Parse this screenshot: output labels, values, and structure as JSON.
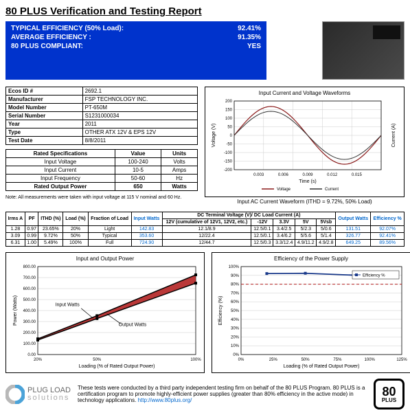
{
  "title": "80 PLUS Verification and Testing Report",
  "bluebox": {
    "r1l": "TYPICAL EFFICIENCY (50% Load):",
    "r1v": "92.41%",
    "r2l": "AVERAGE EFFICIENCY :",
    "r2v": "91.35%",
    "r3l": "80 PLUS COMPLIANT:",
    "r3v": "YES"
  },
  "info": {
    "rows": [
      [
        "Ecos ID #",
        "2692.1"
      ],
      [
        "Manufacturer",
        "FSP TECHNOLOGY INC."
      ],
      [
        "Model Number",
        "PT-650M"
      ],
      [
        "Serial Number",
        "S1231000034"
      ],
      [
        "Year",
        "2011"
      ],
      [
        "Type",
        "OTHER ATX 12V & EPS 12V"
      ],
      [
        "Test Date",
        "8/8/2011"
      ]
    ]
  },
  "spec": {
    "title": "Rated Specifications",
    "h2": "Value",
    "h3": "Units",
    "rows": [
      [
        "Input Voltage",
        "100-240",
        "Volts"
      ],
      [
        "Input Current",
        "10-5",
        "Amps"
      ],
      [
        "Input Frequency",
        "50-60",
        "Hz"
      ],
      [
        "Rated Output Power",
        "650",
        "Watts"
      ]
    ]
  },
  "note": "Note: All measurements were taken with input voltage at 115 V nominal and 60 Hz.",
  "waveform": {
    "title": "Input Current and Voltage Waveforms",
    "caption": "Input AC Current Waveform (ITHD = 9.72%, 50% Load)",
    "ylabel_l": "Voltage (V)",
    "ylabel_r": "Current (A)",
    "xlabel": "Time (s)",
    "xticks": [
      "0.003",
      "0.006",
      "0.009",
      "0.012",
      "0.015"
    ],
    "yticks_l": [
      "-200",
      "-150",
      "-100",
      "-50",
      "0",
      "50",
      "100",
      "150",
      "200"
    ],
    "legend": [
      "Voltage",
      "Current"
    ],
    "colors": {
      "voltage": "#8b1a1a",
      "current": "#8b1a1a",
      "grid": "#cccccc"
    }
  },
  "load": {
    "headers": {
      "irms": "Irms A",
      "pf": "PF",
      "ithd": "ITHD (%)",
      "load": "Load (%)",
      "frac": "Fraction of Load",
      "iw": "Input Watts",
      "dc": "DC Terminal Voltage (V)/ DC Load Current (A)",
      "v12": "12V (cumulative of 12V1, 12V2, etc.)",
      "nv12": "-12V",
      "v33": "3.3V",
      "v5": "5V",
      "v5sb": "5Vsb",
      "ow": "Output Watts",
      "eff": "Efficiency %"
    },
    "rows": [
      {
        "irms": "1.28",
        "pf": "0.97",
        "ithd": "23.65%",
        "load": "20%",
        "frac": "Light",
        "iw": "142.83",
        "v12": "12.1/8.9",
        "nv12": "12.5/0.1",
        "v33": "3.4/2.5",
        "v5": "5/2.3",
        "v5sb": "5/0.6",
        "ow": "131.51",
        "eff": "92.07%"
      },
      {
        "irms": "3.09",
        "pf": "0.99",
        "ithd": "9.72%",
        "load": "50%",
        "frac": "Typical",
        "iw": "353.60",
        "v12": "12/22.4",
        "nv12": "12.5/0.1",
        "v33": "3.4/6.2",
        "v5": "5/5.6",
        "v5sb": "5/1.4",
        "ow": "326.77",
        "eff": "92.41%"
      },
      {
        "irms": "6.31",
        "pf": "1.00",
        "ithd": "5.49%",
        "load": "100%",
        "frac": "Full",
        "iw": "724.90",
        "v12": "12/44.7",
        "nv12": "12.5/0.3",
        "v33": "3.3/12.4",
        "v5": "4.9/11.2",
        "v5sb": "4.9/2.8",
        "ow": "649.25",
        "eff": "89.56%"
      }
    ]
  },
  "power_chart": {
    "title": "Input and Output Power",
    "ylabel": "Power (Watts)",
    "xlabel": "Loading (% of Rated Output Power)",
    "xticks": [
      "20%",
      "50%",
      "100%"
    ],
    "yticks": [
      "0.00",
      "100.00",
      "200.00",
      "300.00",
      "400.00",
      "500.00",
      "600.00",
      "700.00",
      "800.00"
    ],
    "labels": {
      "in": "Input Watts",
      "out": "Output Watts"
    },
    "data": {
      "x": [
        20,
        50,
        100
      ],
      "input": [
        142.83,
        353.6,
        724.9
      ],
      "output": [
        131.51,
        326.77,
        649.25
      ]
    },
    "colors": {
      "fill": "#b22222",
      "line": "#000000",
      "grid": "#cccccc"
    }
  },
  "eff_chart": {
    "title": "Efficiency of the Power Supply",
    "ylabel": "Efficiency (%)",
    "xlabel": "Loading (% of Rated Output Power)",
    "xticks": [
      "0%",
      "25%",
      "50%",
      "75%",
      "100%",
      "125%"
    ],
    "yticks": [
      "0%",
      "10%",
      "20%",
      "30%",
      "40%",
      "50%",
      "60%",
      "70%",
      "80%",
      "90%",
      "100%"
    ],
    "legend": "Efficiency %",
    "threshold": 80,
    "data": {
      "x": [
        20,
        50,
        100
      ],
      "y": [
        92.07,
        92.41,
        89.56
      ]
    },
    "colors": {
      "line": "#1a3a8b",
      "threshold": "#b22222",
      "grid": "#cccccc"
    }
  },
  "footer": {
    "brand1": "PLUG LOAD",
    "brand2": "solutions",
    "text": "These tests were conducted by a third party independent testing firm on behalf of the 80 PLUS Program. 80 PLUS is a certification program to promote highly-efficient power supplies (greater than 80% efficiency in the active mode) in technology applications.",
    "url": "http://www.80plus.org/",
    "badge_n": "80",
    "badge_p": "PLUS"
  }
}
